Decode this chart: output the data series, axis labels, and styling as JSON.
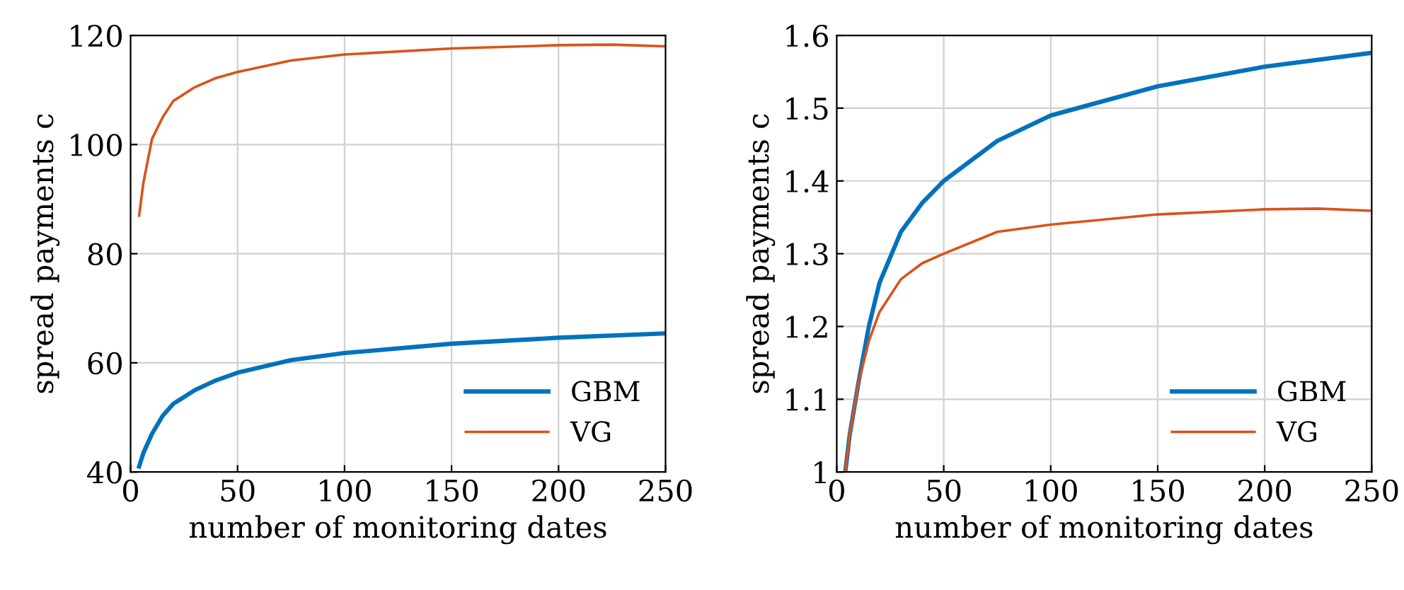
{
  "chart_data": [
    {
      "type": "line",
      "xlabel": "number of monitoring dates",
      "ylabel": "spread payments c",
      "xlim": [
        0,
        250
      ],
      "xticks": [
        0,
        50,
        100,
        150,
        200,
        250
      ],
      "ylim": [
        40,
        120
      ],
      "yticks": [
        40,
        60,
        80,
        100,
        120
      ],
      "grid": true,
      "legend": "bottom right",
      "series": [
        {
          "name": "GBM",
          "color": "#0072bd",
          "x": [
            4,
            6,
            10,
            15,
            20,
            30,
            40,
            50,
            75,
            100,
            150,
            200,
            250
          ],
          "values": [
            41,
            43.5,
            47,
            50.3,
            52.5,
            55,
            56.8,
            58.2,
            60.5,
            61.8,
            63.5,
            64.6,
            65.4
          ]
        },
        {
          "name": "VG",
          "color": "#d95319",
          "x": [
            4,
            6,
            10,
            15,
            20,
            30,
            40,
            50,
            75,
            100,
            150,
            200,
            225,
            250
          ],
          "values": [
            87,
            93,
            101,
            105,
            108,
            110.5,
            112.2,
            113.3,
            115.4,
            116.5,
            117.6,
            118.2,
            118.3,
            118
          ]
        }
      ]
    },
    {
      "type": "line",
      "xlabel": "number of monitoring dates",
      "ylabel": "spread payments c",
      "xlim": [
        0,
        250
      ],
      "xticks": [
        0,
        50,
        100,
        150,
        200,
        250
      ],
      "ylim": [
        1,
        1.6
      ],
      "yticks": [
        1,
        1.1,
        1.2,
        1.3,
        1.4,
        1.5,
        1.6
      ],
      "grid": true,
      "legend": "bottom right",
      "series": [
        {
          "name": "GBM",
          "color": "#0072bd",
          "x": [
            4,
            6,
            10,
            15,
            20,
            30,
            40,
            50,
            75,
            100,
            150,
            200,
            250
          ],
          "values": [
            1.0,
            1.05,
            1.12,
            1.2,
            1.26,
            1.33,
            1.37,
            1.4,
            1.455,
            1.49,
            1.53,
            1.557,
            1.576
          ]
        },
        {
          "name": "VG",
          "color": "#d95319",
          "x": [
            4,
            6,
            10,
            15,
            20,
            30,
            40,
            50,
            75,
            100,
            150,
            200,
            225,
            250
          ],
          "values": [
            1.0,
            1.05,
            1.12,
            1.18,
            1.22,
            1.265,
            1.287,
            1.3,
            1.33,
            1.34,
            1.354,
            1.361,
            1.362,
            1.359
          ]
        }
      ]
    }
  ]
}
